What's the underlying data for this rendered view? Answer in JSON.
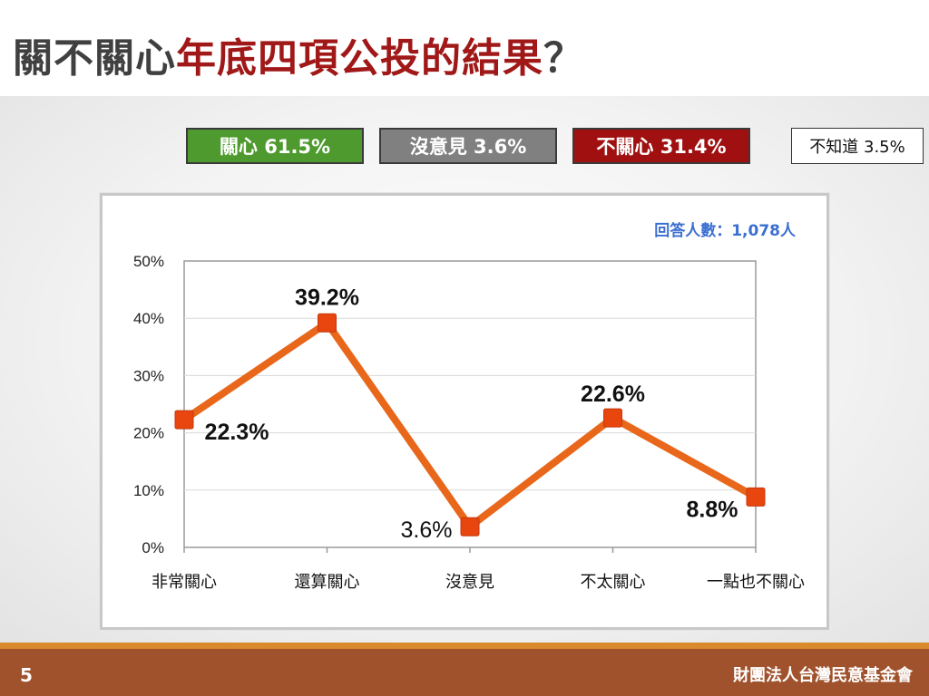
{
  "slide": {
    "title_part1": "關不關心",
    "title_part2": "年底四項公投的結果",
    "title_part3": "？",
    "page_number": "5",
    "organization": "財團法人台灣民意基金會"
  },
  "summary": [
    {
      "label": "關心 61.5%",
      "color": "#4e9a2e"
    },
    {
      "label": "沒意見 3.6%",
      "color": "#808080"
    },
    {
      "label": "不關心 31.4%",
      "color": "#a01010"
    },
    {
      "label": "不知道 3.5%",
      "color": "#ffffff"
    }
  ],
  "colors": {
    "line": "#e8671b",
    "marker": "#e8450f",
    "title_accent": "#a01818",
    "sample_text": "#3b6fd1"
  },
  "chart_data": {
    "type": "line",
    "title": "",
    "xlabel": "",
    "ylabel": "",
    "categories": [
      "非常關心",
      "還算關心",
      "沒意見",
      "不太關心",
      "一點也不關心"
    ],
    "series": [
      {
        "values": [
          22.3,
          39.2,
          3.6,
          22.6,
          8.8
        ]
      }
    ],
    "data_labels": [
      "22.3%",
      "39.2%",
      "3.6%",
      "22.6%",
      "8.8%"
    ],
    "yticks": [
      "0%",
      "10%",
      "20%",
      "30%",
      "40%",
      "50%"
    ],
    "ylim": [
      0,
      50
    ],
    "grid": true,
    "annotation": "回答人數：1,078人"
  }
}
